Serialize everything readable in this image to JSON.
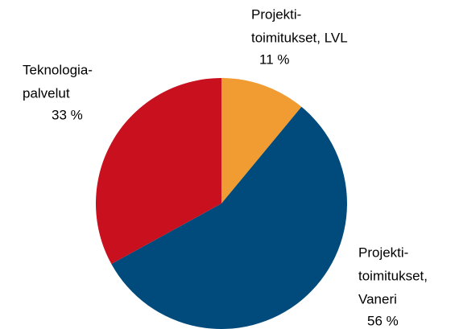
{
  "chart_data": {
    "type": "pie",
    "categories": [
      [
        "Projekti-",
        "toimitukset, LVL"
      ],
      [
        "Projekti-",
        "toimitukset,",
        "Vaneri"
      ],
      [
        "Teknologia-",
        "palvelut"
      ]
    ],
    "values": [
      11,
      56,
      33
    ],
    "value_labels": [
      "11 %",
      "56 %",
      "33 %"
    ],
    "colors": [
      "#f09c33",
      "#004a7c",
      "#c8101e"
    ]
  }
}
